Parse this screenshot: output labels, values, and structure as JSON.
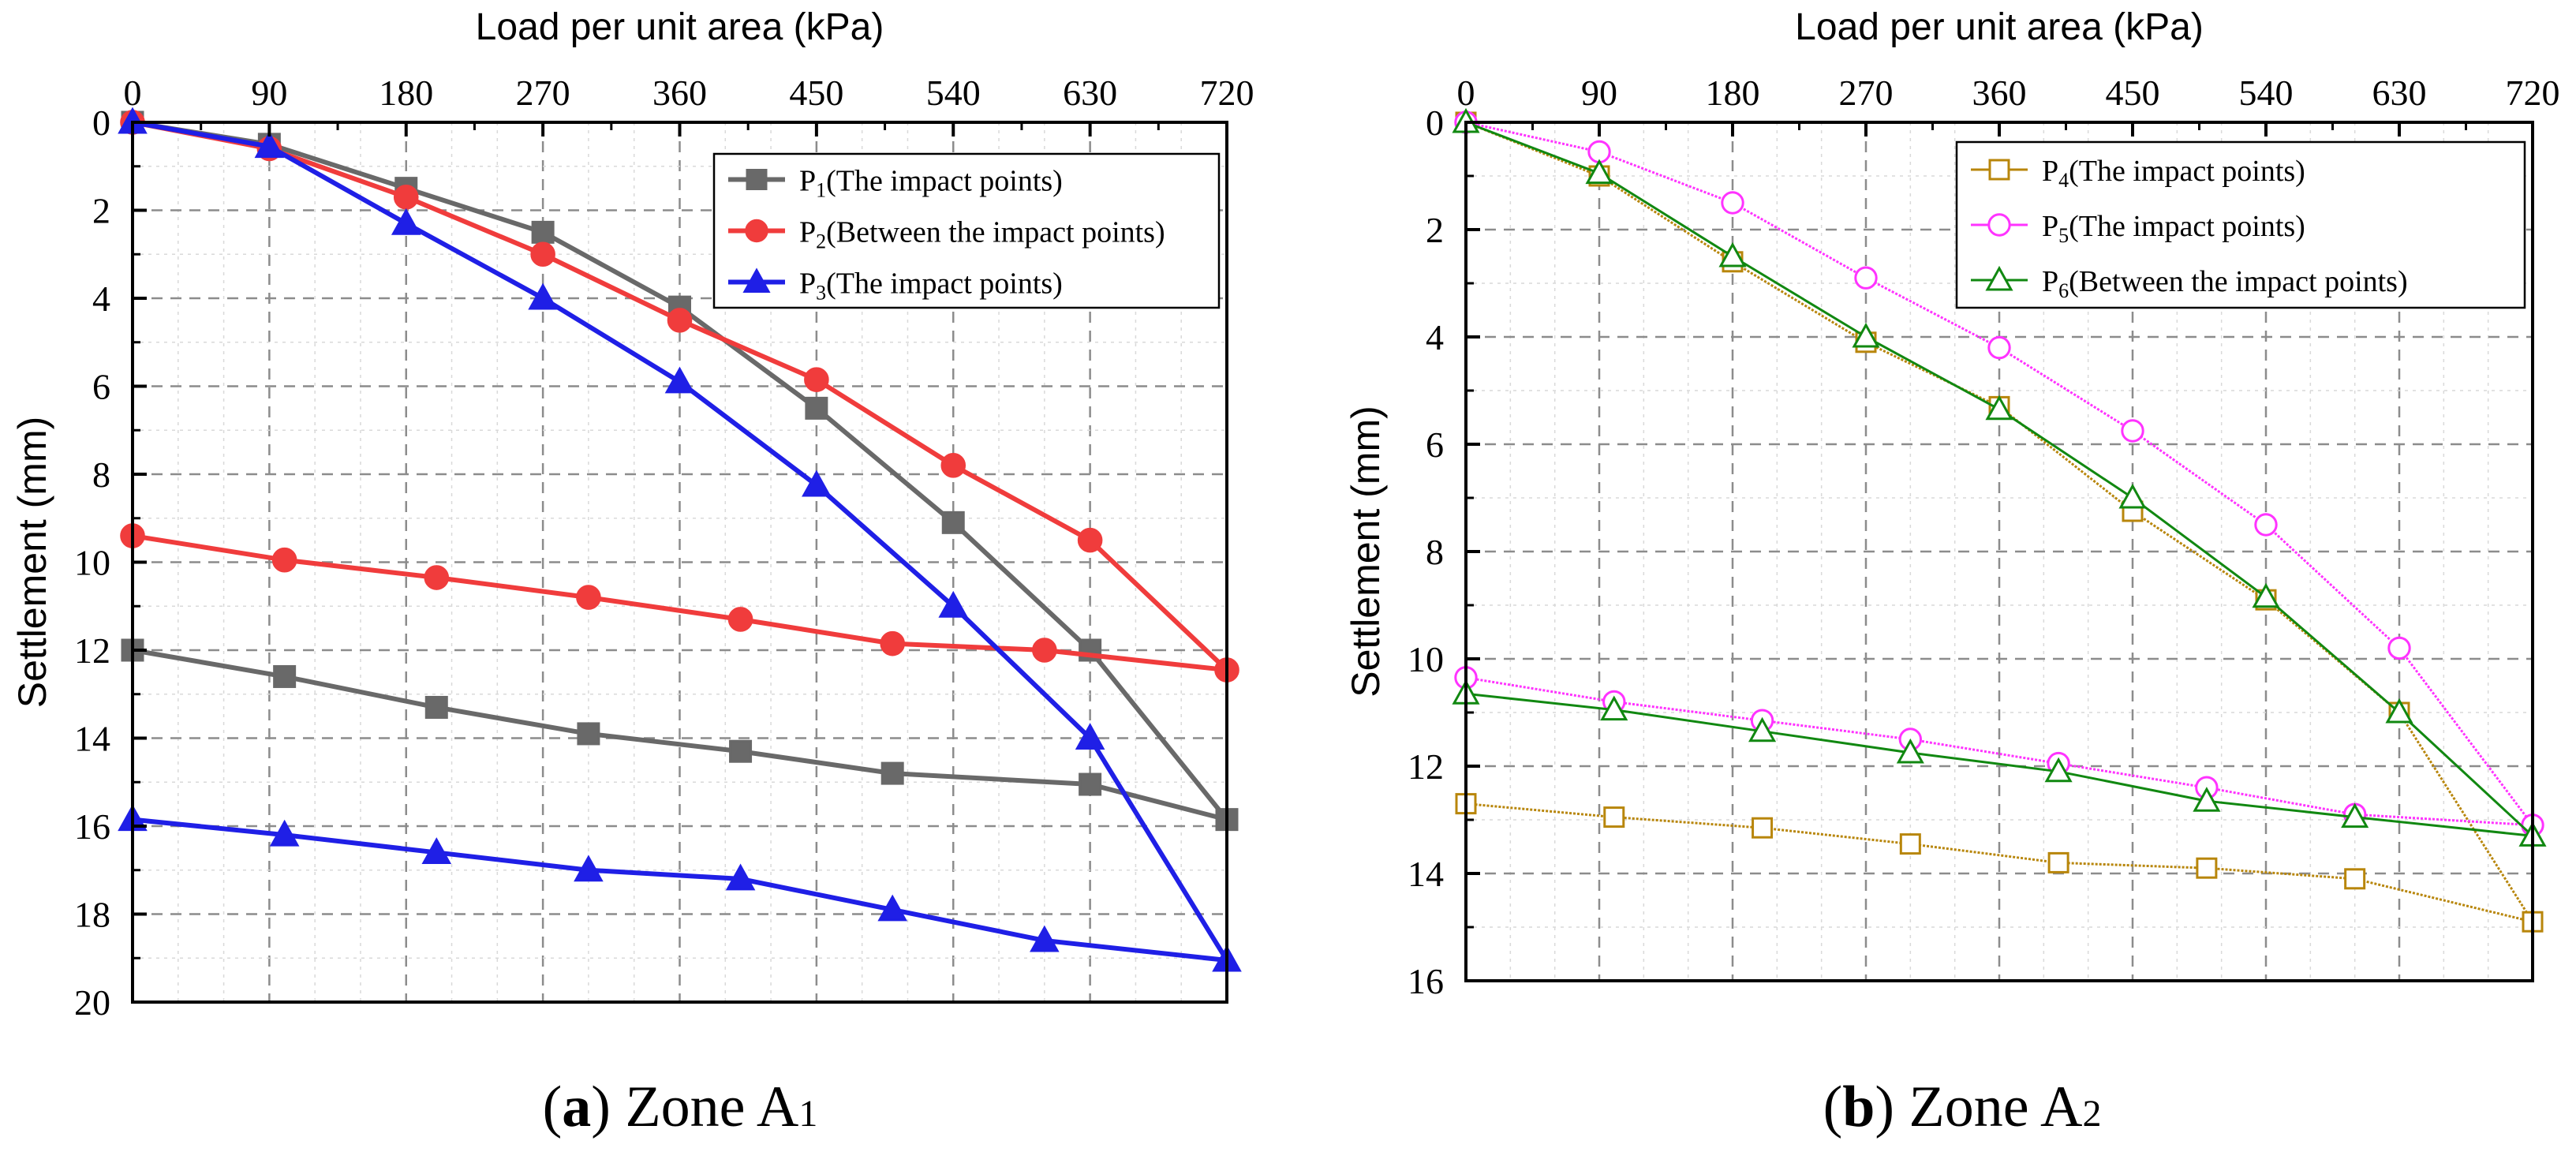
{
  "chart_data": [
    {
      "type": "line",
      "panel": "a",
      "caption_letter": "a",
      "caption_text": "Zone A",
      "caption_sub": "1",
      "xlabel": "Load per unit area (kPa)",
      "ylabel": "Settlement (mm)",
      "x_ticks": [
        "0",
        "90",
        "180",
        "270",
        "360",
        "450",
        "540",
        "630",
        "720"
      ],
      "y_ticks": [
        "0",
        "2",
        "4",
        "6",
        "8",
        "10",
        "12",
        "14",
        "16",
        "18",
        "20"
      ],
      "xlim": [
        0,
        720
      ],
      "ylim": [
        0,
        20
      ],
      "y_inverted": true,
      "x_axis_position": "top",
      "grid": true,
      "legend_position": "top-right",
      "series": [
        {
          "name": "P1",
          "legend_main": "P",
          "legend_sub": "1",
          "legend_rest": "(The impact points)",
          "color": "#696969",
          "marker": "square",
          "filled": true,
          "points": [
            [
              0,
              0
            ],
            [
              90,
              0.5
            ],
            [
              180,
              1.5
            ],
            [
              270,
              2.5
            ],
            [
              360,
              4.2
            ],
            [
              450,
              6.5
            ],
            [
              540,
              9.1
            ],
            [
              630,
              12
            ],
            [
              720,
              15.85
            ],
            [
              630,
              15.05
            ],
            [
              500,
              14.8
            ],
            [
              400,
              14.3
            ],
            [
              300,
              13.9
            ],
            [
              200,
              13.3
            ],
            [
              100,
              12.6
            ],
            [
              0,
              12
            ]
          ]
        },
        {
          "name": "P2",
          "legend_main": "P",
          "legend_sub": "2",
          "legend_rest": "(Between the impact points)",
          "color": "#f03c3c",
          "marker": "circle",
          "filled": true,
          "points": [
            [
              0,
              0
            ],
            [
              90,
              0.6
            ],
            [
              180,
              1.7
            ],
            [
              270,
              3.0
            ],
            [
              360,
              4.5
            ],
            [
              450,
              5.85
            ],
            [
              540,
              7.8
            ],
            [
              630,
              9.5
            ],
            [
              720,
              12.45
            ],
            [
              600,
              12
            ],
            [
              500,
              11.85
            ],
            [
              400,
              11.3
            ],
            [
              300,
              10.8
            ],
            [
              200,
              10.35
            ],
            [
              100,
              9.95
            ],
            [
              0,
              9.4
            ]
          ]
        },
        {
          "name": "P3",
          "legend_main": "P",
          "legend_sub": "3",
          "legend_rest": "(The impact points)",
          "color": "#1f1fe6",
          "marker": "triangle",
          "filled": true,
          "points": [
            [
              0,
              0
            ],
            [
              90,
              0.55
            ],
            [
              180,
              2.3
            ],
            [
              270,
              4.0
            ],
            [
              360,
              5.9
            ],
            [
              450,
              8.25
            ],
            [
              540,
              11.0
            ],
            [
              630,
              14.0
            ],
            [
              720,
              19.05
            ],
            [
              600,
              18.6
            ],
            [
              500,
              17.9
            ],
            [
              400,
              17.2
            ],
            [
              300,
              17.0
            ],
            [
              200,
              16.6
            ],
            [
              100,
              16.2
            ],
            [
              0,
              15.85
            ]
          ]
        }
      ]
    },
    {
      "type": "line",
      "panel": "b",
      "caption_letter": "b",
      "caption_text": "Zone A",
      "caption_sub": "2",
      "xlabel": "Load per unit area (kPa)",
      "ylabel": "Settlement (mm)",
      "x_ticks": [
        "0",
        "90",
        "180",
        "270",
        "360",
        "450",
        "540",
        "630",
        "720"
      ],
      "y_ticks": [
        "0",
        "2",
        "4",
        "6",
        "8",
        "10",
        "12",
        "14",
        "16"
      ],
      "xlim": [
        0,
        720
      ],
      "ylim": [
        0,
        16
      ],
      "y_inverted": true,
      "x_axis_position": "top",
      "grid": true,
      "legend_position": "top-right",
      "series": [
        {
          "name": "P4",
          "legend_main": "P",
          "legend_sub": "4",
          "legend_rest": "(The impact points)",
          "color": "#b8860b",
          "marker": "square",
          "filled": false,
          "points": [
            [
              0,
              0
            ],
            [
              90,
              1.0
            ],
            [
              180,
              2.6
            ],
            [
              270,
              4.1
            ],
            [
              360,
              5.3
            ],
            [
              450,
              7.25
            ],
            [
              540,
              8.9
            ],
            [
              630,
              11.0
            ],
            [
              720,
              14.9
            ],
            [
              600,
              14.1
            ],
            [
              500,
              13.9
            ],
            [
              400,
              13.8
            ],
            [
              300,
              13.45
            ],
            [
              200,
              13.15
            ],
            [
              100,
              12.95
            ],
            [
              0,
              12.7
            ]
          ]
        },
        {
          "name": "P5",
          "legend_main": "P",
          "legend_sub": "5",
          "legend_rest": "(The impact points)",
          "color": "#ff33ff",
          "marker": "circle",
          "filled": false,
          "points": [
            [
              0,
              0
            ],
            [
              90,
              0.55
            ],
            [
              180,
              1.5
            ],
            [
              270,
              2.9
            ],
            [
              360,
              4.2
            ],
            [
              450,
              5.75
            ],
            [
              540,
              7.5
            ],
            [
              630,
              9.8
            ],
            [
              720,
              13.1
            ],
            [
              600,
              12.9
            ],
            [
              500,
              12.4
            ],
            [
              400,
              11.95
            ],
            [
              300,
              11.5
            ],
            [
              200,
              11.15
            ],
            [
              100,
              10.8
            ],
            [
              0,
              10.35
            ]
          ]
        },
        {
          "name": "P6",
          "legend_main": "P",
          "legend_sub": "6",
          "legend_rest": "(Between the impact points)",
          "color": "#118811",
          "marker": "triangle",
          "filled": false,
          "points": [
            [
              0,
              0
            ],
            [
              90,
              0.95
            ],
            [
              180,
              2.5
            ],
            [
              270,
              4.0
            ],
            [
              360,
              5.35
            ],
            [
              450,
              7.0
            ],
            [
              540,
              8.85
            ],
            [
              630,
              11.0
            ],
            [
              720,
              13.3
            ],
            [
              600,
              12.95
            ],
            [
              500,
              12.65
            ],
            [
              400,
              12.1
            ],
            [
              300,
              11.75
            ],
            [
              200,
              11.35
            ],
            [
              100,
              10.95
            ],
            [
              0,
              10.65
            ]
          ]
        }
      ]
    }
  ]
}
